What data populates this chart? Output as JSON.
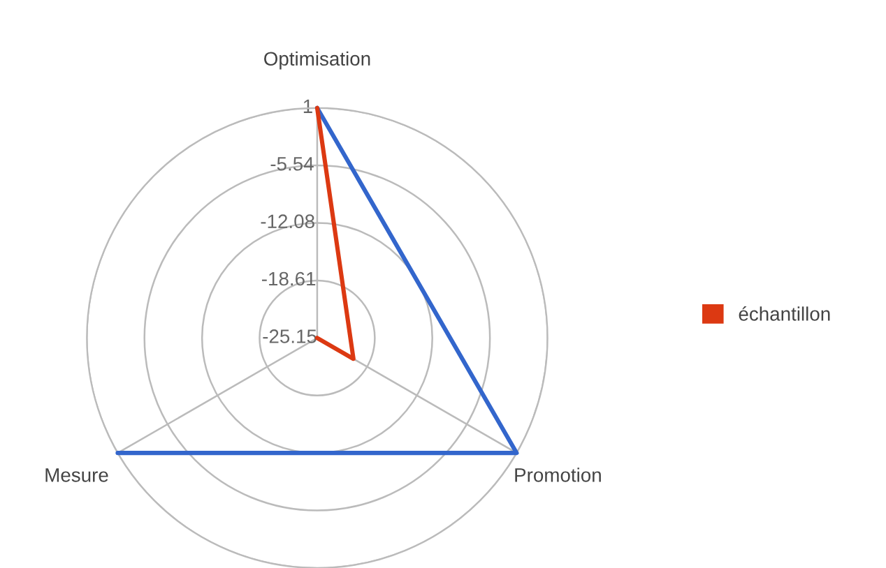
{
  "chart_data": {
    "type": "radar",
    "categories": [
      "Optimisation",
      "Promotion",
      "Mesure"
    ],
    "series": [
      {
        "color": "#3366cc",
        "values": [
          1,
          1,
          1
        ]
      },
      {
        "name": "échantillon",
        "color": "#dc3912",
        "values": [
          1,
          -20.4,
          -25.15
        ]
      }
    ],
    "ylim": [
      -25.15,
      1
    ],
    "yticks": [
      1,
      -5.54,
      -12.08,
      -18.61,
      -25.15
    ],
    "grid": true,
    "legend": "right"
  }
}
